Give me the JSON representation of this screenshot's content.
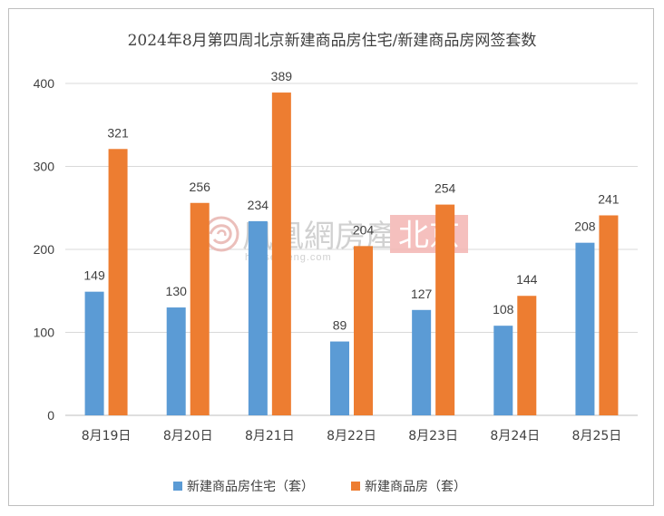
{
  "chart_data": {
    "type": "bar",
    "title": "2024年8月第四周北京新建商品房住宅/新建商品房网签套数",
    "categories": [
      "8月19日",
      "8月20日",
      "8月21日",
      "8月22日",
      "8月23日",
      "8月24日",
      "8月25日"
    ],
    "series": [
      {
        "name": "新建商品房住宅（套）",
        "color": "#5b9bd5",
        "values": [
          149,
          130,
          234,
          89,
          127,
          108,
          208
        ]
      },
      {
        "name": "新建商品房（套）",
        "color": "#ed7d31",
        "values": [
          321,
          256,
          389,
          204,
          254,
          144,
          241
        ]
      }
    ],
    "ylim": [
      0,
      400
    ],
    "yticks": [
      0,
      100,
      200,
      300,
      400
    ],
    "grid": true,
    "legend": "bottom",
    "data_labels": true
  },
  "watermark": {
    "brand": "凤凰網房產",
    "url": "house.ifeng.com",
    "city": "北京",
    "city_bg": "#f4b6b3",
    "logo_icon": "phoenix-swirl-icon"
  }
}
